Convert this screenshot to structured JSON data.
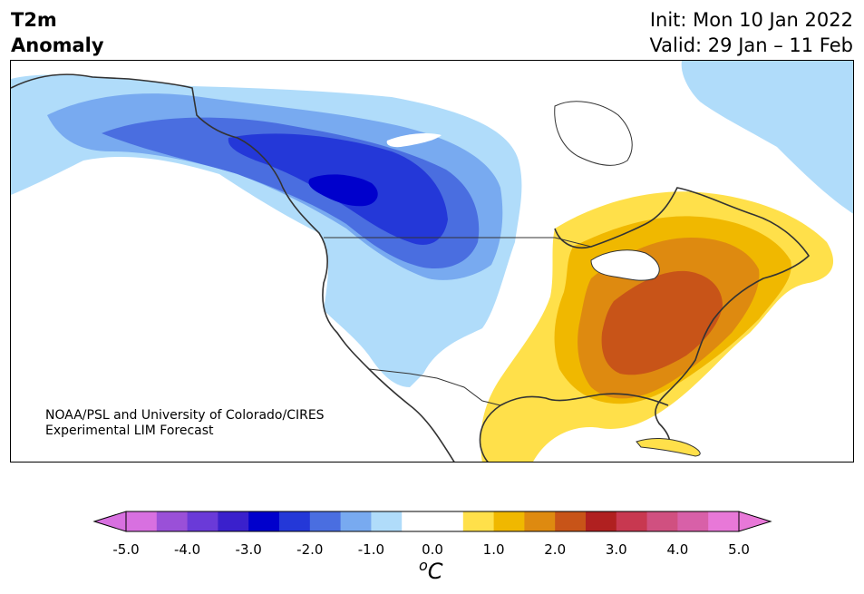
{
  "title": {
    "line1": "T2m",
    "line2": "Anomaly"
  },
  "info": {
    "init": "Init: Mon 10 Jan 2022",
    "valid": "Valid: 29 Jan – 11 Feb"
  },
  "credit": {
    "line1": "NOAA/PSL and University of Colorado/CIRES",
    "line2": "Experimental LIM Forecast"
  },
  "colorbar": {
    "unit_prefix": "o",
    "unit": "C",
    "tick_labels": [
      "-5.0",
      "-4.0",
      "-3.0",
      "-2.0",
      "-1.0",
      "0.0",
      "1.0",
      "2.0",
      "3.0",
      "4.0",
      "5.0"
    ],
    "colors": [
      "#d870e0",
      "#9a50d8",
      "#6a3ad8",
      "#3a20cc",
      "#0000cc",
      "#2438d8",
      "#4a6ee0",
      "#78aaf0",
      "#b0dcfa",
      "#ffffff",
      "#ffffff",
      "#ffe04a",
      "#f0b800",
      "#de8a10",
      "#c85418",
      "#b02020",
      "#c83850",
      "#d05080",
      "#d860a8",
      "#e878d8"
    ],
    "under_color": "#d870e0",
    "over_color": "#e878d8"
  },
  "map": {
    "cold_colors": [
      "#b0dcfa",
      "#78aaf0",
      "#4a6ee0",
      "#2438d8",
      "#0000cc"
    ],
    "warm_colors": [
      "#ffe04a",
      "#f0b800",
      "#de8a10",
      "#c85418"
    ]
  }
}
